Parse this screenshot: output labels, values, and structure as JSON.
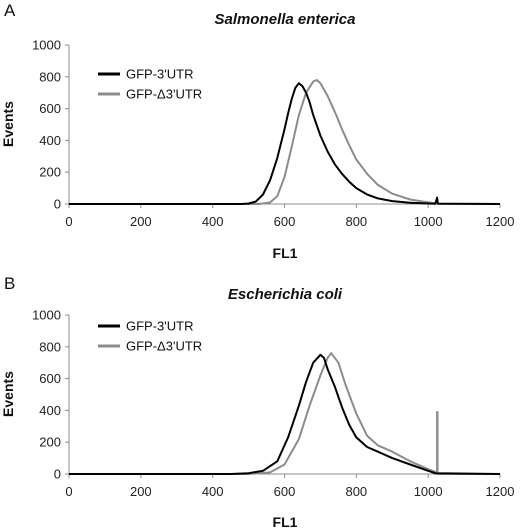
{
  "chart_data": [
    {
      "panel_label": "A",
      "type": "line",
      "title": "Salmonella enterica",
      "xlabel": "FL1",
      "ylabel": "Events",
      "xlim": [
        0,
        1200
      ],
      "ylim": [
        0,
        1000
      ],
      "xticks": [
        0,
        200,
        400,
        600,
        800,
        1000,
        1200
      ],
      "yticks": [
        0,
        200,
        400,
        600,
        800,
        1000
      ],
      "grid": false,
      "legend_position": "top-left",
      "series": [
        {
          "name": "GFP-3'UTR",
          "color": "#000000",
          "points": [
            [
              0,
              0
            ],
            [
              480,
              0
            ],
            [
              500,
              3
            ],
            [
              520,
              15
            ],
            [
              540,
              60
            ],
            [
              560,
              150
            ],
            [
              580,
              290
            ],
            [
              600,
              470
            ],
            [
              610,
              570
            ],
            [
              620,
              660
            ],
            [
              630,
              730
            ],
            [
              640,
              760
            ],
            [
              650,
              740
            ],
            [
              660,
              700
            ],
            [
              670,
              640
            ],
            [
              680,
              560
            ],
            [
              700,
              430
            ],
            [
              720,
              330
            ],
            [
              740,
              250
            ],
            [
              760,
              190
            ],
            [
              780,
              140
            ],
            [
              800,
              100
            ],
            [
              830,
              60
            ],
            [
              860,
              35
            ],
            [
              900,
              18
            ],
            [
              950,
              8
            ],
            [
              1000,
              3
            ],
            [
              1020,
              2
            ],
            [
              1025,
              40
            ],
            [
              1027,
              2
            ],
            [
              1200,
              0
            ]
          ]
        },
        {
          "name": "GFP-Δ3'UTR",
          "color": "#8c8c8c",
          "points": [
            [
              0,
              0
            ],
            [
              530,
              0
            ],
            [
              560,
              10
            ],
            [
              580,
              50
            ],
            [
              600,
              170
            ],
            [
              620,
              360
            ],
            [
              640,
              560
            ],
            [
              660,
              700
            ],
            [
              680,
              770
            ],
            [
              690,
              780
            ],
            [
              700,
              760
            ],
            [
              720,
              680
            ],
            [
              740,
              580
            ],
            [
              760,
              470
            ],
            [
              780,
              370
            ],
            [
              800,
              280
            ],
            [
              830,
              190
            ],
            [
              860,
              120
            ],
            [
              900,
              65
            ],
            [
              950,
              28
            ],
            [
              1000,
              10
            ],
            [
              1030,
              3
            ],
            [
              1200,
              0
            ]
          ]
        }
      ]
    },
    {
      "panel_label": "B",
      "type": "line",
      "title": "Escherichia coli",
      "xlabel": "FL1",
      "ylabel": "Events",
      "xlim": [
        0,
        1200
      ],
      "ylim": [
        0,
        1000
      ],
      "xticks": [
        0,
        200,
        400,
        600,
        800,
        1000,
        1200
      ],
      "yticks": [
        0,
        200,
        400,
        600,
        800,
        1000
      ],
      "grid": false,
      "legend_position": "top-left",
      "series": [
        {
          "name": "GFP-3'UTR",
          "color": "#000000",
          "points": [
            [
              0,
              0
            ],
            [
              450,
              0
            ],
            [
              500,
              5
            ],
            [
              540,
              20
            ],
            [
              580,
              80
            ],
            [
              610,
              230
            ],
            [
              640,
              430
            ],
            [
              660,
              580
            ],
            [
              680,
              700
            ],
            [
              700,
              750
            ],
            [
              710,
              730
            ],
            [
              720,
              660
            ],
            [
              740,
              550
            ],
            [
              760,
              420
            ],
            [
              780,
              310
            ],
            [
              800,
              230
            ],
            [
              830,
              170
            ],
            [
              860,
              140
            ],
            [
              900,
              100
            ],
            [
              950,
              60
            ],
            [
              1000,
              20
            ],
            [
              1020,
              5
            ],
            [
              1200,
              0
            ]
          ]
        },
        {
          "name": "GFP-Δ3'UTR",
          "color": "#8c8c8c",
          "points": [
            [
              0,
              0
            ],
            [
              500,
              0
            ],
            [
              560,
              10
            ],
            [
              600,
              60
            ],
            [
              640,
              220
            ],
            [
              670,
              430
            ],
            [
              700,
              620
            ],
            [
              720,
              730
            ],
            [
              730,
              760
            ],
            [
              750,
              700
            ],
            [
              770,
              560
            ],
            [
              800,
              380
            ],
            [
              830,
              240
            ],
            [
              860,
              180
            ],
            [
              900,
              140
            ],
            [
              950,
              80
            ],
            [
              1000,
              30
            ],
            [
              1025,
              10
            ],
            [
              1025,
              390
            ],
            [
              1026,
              390
            ],
            [
              1026,
              0
            ],
            [
              1200,
              0
            ]
          ]
        }
      ]
    }
  ]
}
